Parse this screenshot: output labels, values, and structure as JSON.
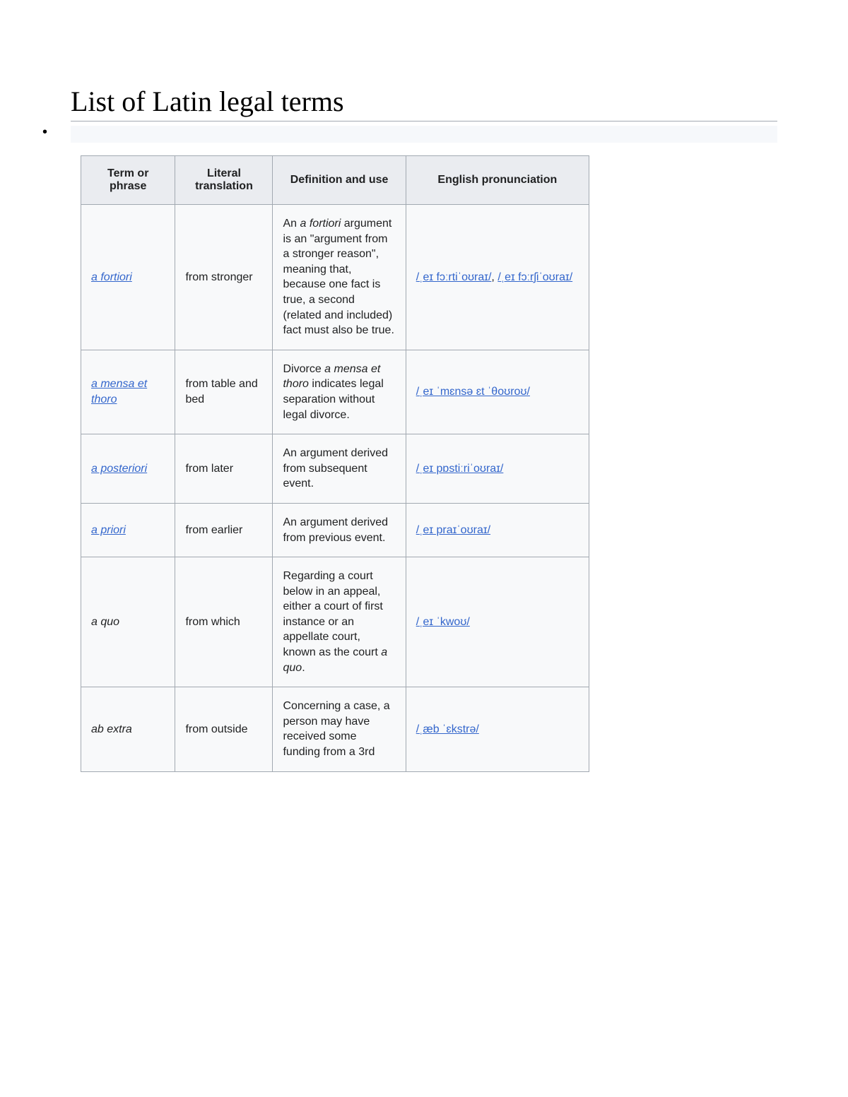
{
  "title": "List of Latin legal terms",
  "colors": {
    "text": "#202122",
    "heading_border": "#a2a9b1",
    "th_bg": "#eaecf0",
    "td_bg": "#f8f9fa",
    "cell_border": "#a2a9b1",
    "link": "#3366cc",
    "bullet_bar_bg": "#f6f8fb"
  },
  "columns": [
    "Term or phrase",
    "Literal translation",
    "Definition and use",
    "English pronunciation"
  ],
  "rows": [
    {
      "term": "a fortiori",
      "term_is_link": true,
      "literal": "from stronger",
      "def_pre": "An ",
      "def_em": "a fortiori",
      "def_post": " argument is an \"argument from a stronger reason\", meaning that, because one fact is true, a second (related and included) fact must also be true.",
      "pron_html": "<a class='pronlink' href='#'>/ˌeɪ fɔːrtiˈoʊraɪ/</a>, <a class='pronlink' href='#'>/ˌeɪ fɔːrʃiˈoʊraɪ/</a>"
    },
    {
      "term": "a mensa et thoro",
      "term_is_link": true,
      "literal": "from table and bed",
      "def_pre": "Divorce ",
      "def_em": "a mensa et thoro",
      "def_post": " indicates legal separation without legal divorce.",
      "pron_html": "<a class='pronlink' href='#'>/ˌeɪ ˈmɛnsə ɛt ˈθoʊroʊ/</a>"
    },
    {
      "term": "a posteriori",
      "term_is_link": true,
      "literal": "from later",
      "def_pre": "An argument derived from subsequent event.",
      "def_em": "",
      "def_post": "",
      "pron_html": "<a class='pronlink' href='#'>/ˌeɪ  pɒstiːriˈoʊraɪ/</a>"
    },
    {
      "term": "a priori",
      "term_is_link": true,
      "literal": "from earlier",
      "def_pre": "An argument derived from previous event.",
      "def_em": "",
      "def_post": "",
      "pron_html": "<a class='pronlink' href='#'>/ˌeɪ praɪˈoʊraɪ/</a>"
    },
    {
      "term": "a quo",
      "term_is_link": false,
      "literal": "from which",
      "def_pre": "Regarding a court below in an appeal, either a court of first instance or an appellate court, known as the court ",
      "def_em": "a quo",
      "def_post": ".",
      "pron_html": "<a class='pronlink' href='#'>/ˌeɪ ˈkwoʊ/</a>"
    },
    {
      "term": "ab extra",
      "term_is_link": false,
      "literal": "from outside",
      "def_pre": "Concerning a case, a person may have received some funding from a 3rd",
      "def_em": "",
      "def_post": "",
      "pron_html": "<a class='pronlink' href='#'>/ˌæb ˈɛkstrə/</a>"
    }
  ]
}
